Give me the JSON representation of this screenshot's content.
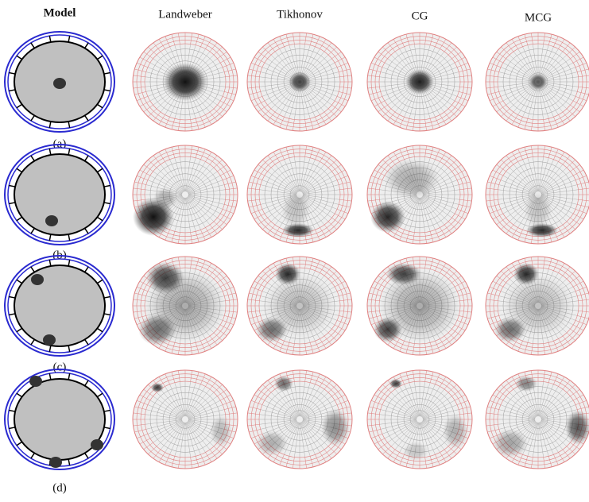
{
  "header": {
    "columns": [
      "Model",
      "Landweber",
      "Tikhonov",
      "CG",
      "MCG"
    ]
  },
  "rows": [
    {
      "label": "(a)"
    },
    {
      "label": "(b)"
    },
    {
      "label": "(c)"
    },
    {
      "label": "(d)"
    }
  ]
}
